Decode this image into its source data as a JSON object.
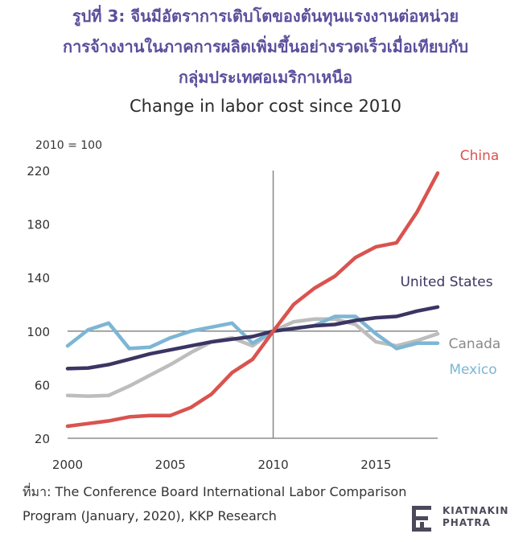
{
  "title_th": [
    "รูปที่ 3: จีนมีอัตราการเติบโตของต้นทุนแรงงานต่อหน่วย",
    "การจ้างงานในภาคการผลิตเพิ่มขึ้นอย่างรวดเร็วเมื่อเทียบกับ",
    "กลุ่มประเทศอเมริกาเหนือ"
  ],
  "source": [
    "ที่มา: The Conference Board International Labor Comparison",
    "Program (January, 2020), KKP Research"
  ],
  "logo": {
    "line1": "KIATNAKIN",
    "line2": "PHATRA"
  },
  "chart_data": {
    "type": "line",
    "title": "Change in labor cost since 2010",
    "unit_note": "2010 = 100",
    "xlabel": "",
    "ylabel": "",
    "xlim": [
      2000,
      2018
    ],
    "ylim": [
      20,
      220
    ],
    "x_ticks": [
      2000,
      2005,
      2010,
      2015
    ],
    "y_ticks": [
      20,
      60,
      100,
      140,
      180,
      220
    ],
    "reference_line_y": 100,
    "reference_line_x": 2010,
    "x": [
      2000,
      2001,
      2002,
      2003,
      2004,
      2005,
      2006,
      2007,
      2008,
      2009,
      2010,
      2011,
      2012,
      2013,
      2014,
      2015,
      2016,
      2017,
      2018
    ],
    "series": [
      {
        "name": "Canada",
        "color": "#bdbdbd",
        "values": [
          52,
          51.5,
          52,
          59,
          67,
          75,
          84,
          92,
          95,
          89,
          100,
          107,
          109,
          109,
          105,
          92,
          89,
          93,
          98
        ]
      },
      {
        "name": "Mexico",
        "color": "#7cb6d4",
        "values": [
          89,
          101,
          106,
          87,
          88,
          95,
          100,
          103,
          106,
          91,
          100,
          102,
          104,
          111,
          111,
          98,
          87,
          91,
          91
        ]
      },
      {
        "name": "United States",
        "color": "#3b3563",
        "values": [
          72,
          72.5,
          75,
          79,
          83,
          86,
          89,
          92,
          94,
          96,
          100,
          102,
          104,
          105,
          108,
          110,
          111,
          115,
          118
        ]
      },
      {
        "name": "China",
        "color": "#d9534f",
        "values": [
          29,
          31,
          33,
          36,
          37,
          37,
          43,
          53,
          69,
          79,
          100,
          120,
          132,
          141,
          155,
          163,
          166,
          189,
          218
        ]
      }
    ],
    "grid": false
  }
}
